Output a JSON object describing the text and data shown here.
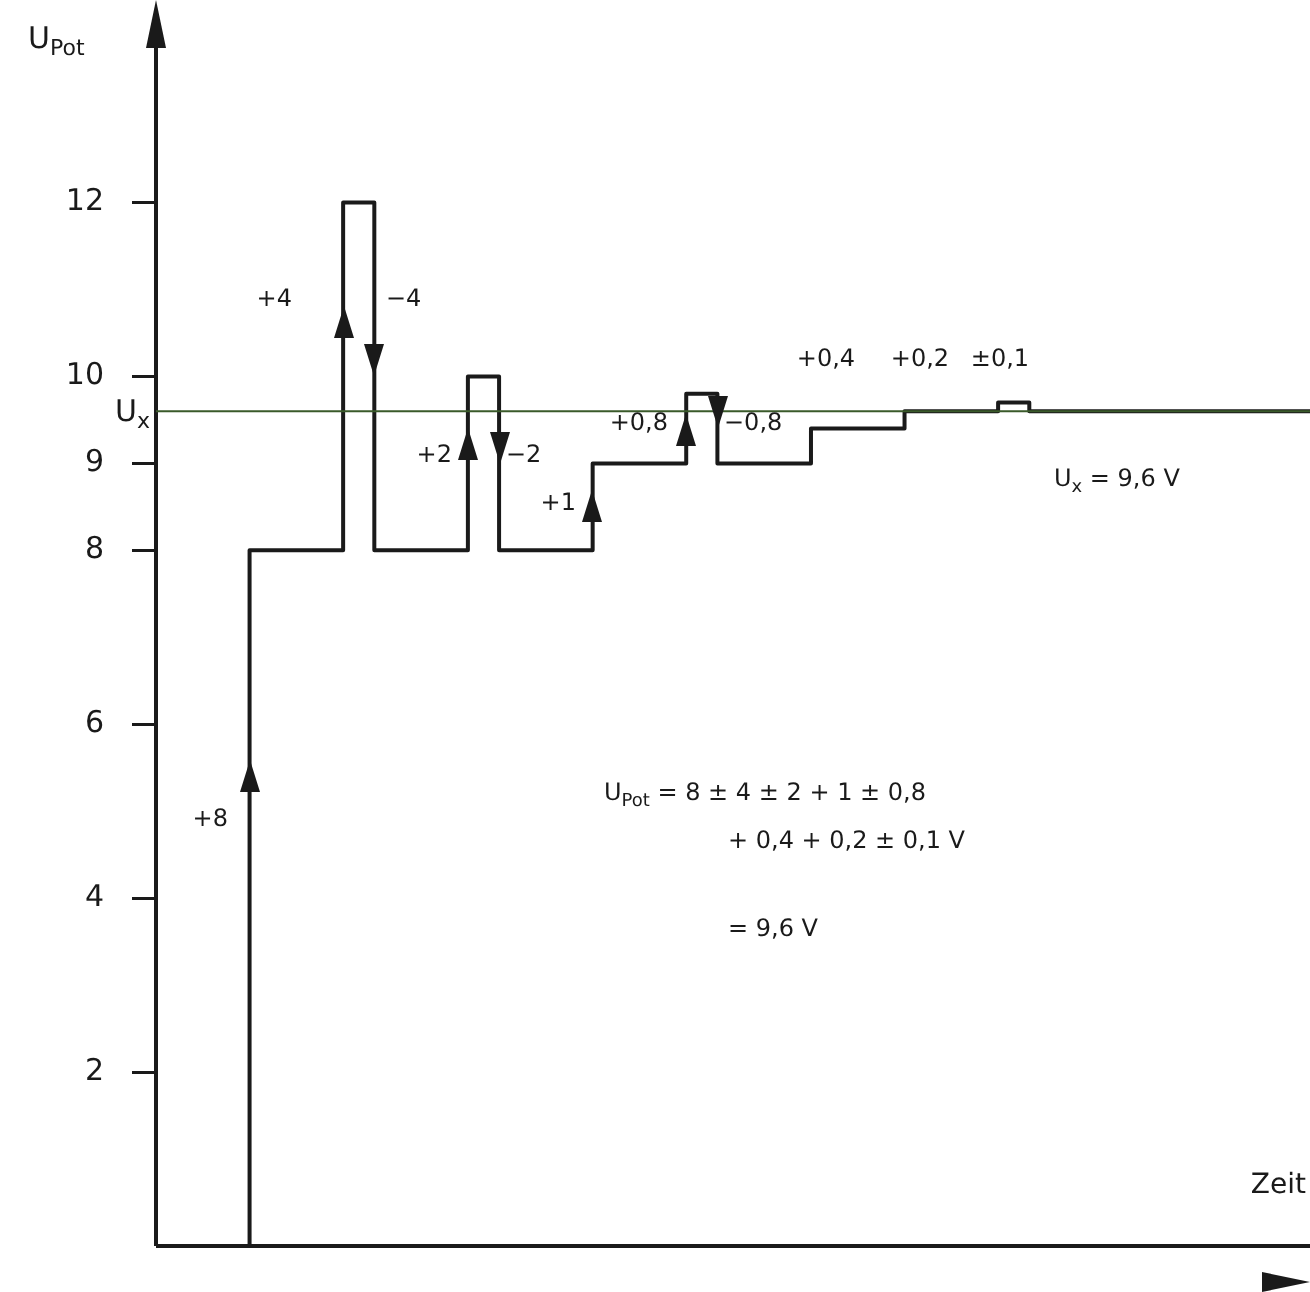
{
  "chart_data": {
    "type": "step",
    "xlabel": "Zeit",
    "ylabel": "U$_{Pot}$",
    "categories": [
      null,
      null,
      null,
      null,
      null,
      null,
      null,
      null,
      null,
      null,
      null,
      null,
      null,
      null,
      null,
      null,
      null,
      null,
      null,
      null,
      null,
      null,
      null,
      null,
      null,
      null,
      null,
      null,
      null,
      null,
      null,
      null,
      null,
      null,
      null,
      null,
      null,
      null
    ],
    "series": [
      {
        "color": "#1a1a1a",
        "values": [
          0,
          0,
          0,
          8,
          8,
          8,
          12,
          8,
          8,
          8,
          10,
          8,
          8,
          8,
          9,
          9,
          9,
          9.8,
          9,
          9,
          9,
          9.4,
          9.4,
          9.4,
          9.6,
          9.6,
          9.6,
          9.7,
          9.6,
          9.6,
          9.6,
          9.6,
          9.6,
          9.6,
          9.6,
          9.6,
          9.6,
          9.6
        ]
      }
    ],
    "ylim": [
      0,
      13.8
    ],
    "yticks": [
      2,
      4,
      6,
      8,
      9,
      10,
      12
    ],
    "tick_labels": "y",
    "grid": false,
    "legend": false,
    "marker": "none",
    "line_style": "solid",
    "ref_lines": [
      {
        "axis": "y",
        "value": 9.6,
        "label": "U$_{x}$",
        "color": "#3a5a2a"
      }
    ],
    "annotations": [
      "+8",
      "+4",
      "−4",
      "+2",
      "−2",
      "+1",
      "+0,8",
      "−0,8",
      "+0,4",
      "+0,2",
      "±0,1",
      "U$_{x}$ = 9,6 V",
      "U$_{Pot}$ = 8 ± 4 ± 2 + 1 ± 0,8",
      "+ 0,4 + 0,2 ± 0,1 V",
      "= 9,6 V"
    ]
  }
}
